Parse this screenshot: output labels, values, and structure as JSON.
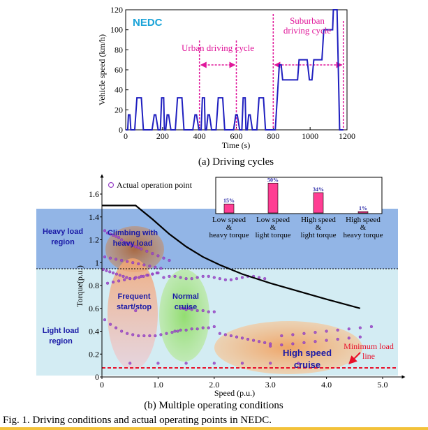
{
  "figure": {
    "caption": "Fig. 1. Driving conditions and actual operating points in NEDC.",
    "subcaption_a": "(a) Driving cycles",
    "subcaption_b": "(b) Multiple operating conditions"
  },
  "chart_data": [
    {
      "type": "line",
      "title": "NEDC",
      "xlabel": "Time (s)",
      "ylabel": "Vehicle speed (km/h)",
      "xlim": [
        0,
        1200
      ],
      "ylim": [
        0,
        120
      ],
      "x_ticks": [
        0,
        200,
        400,
        600,
        800,
        1000,
        1200
      ],
      "y_ticks": [
        0,
        20,
        40,
        60,
        80,
        100,
        120
      ],
      "x_tick_labels": [
        "0",
        "200",
        "400",
        "600",
        "800",
        "1000",
        "1200"
      ],
      "y_tick_labels": [
        "0",
        "20",
        "40",
        "60",
        "80",
        "100",
        "120"
      ],
      "series": [
        {
          "color": "#1f1fbf",
          "x": [
            0,
            11,
            15,
            23,
            28,
            49,
            61,
            85,
            96,
            117,
            122,
            143,
            155,
            163,
            176,
            188,
            195,
            206,
            210,
            217,
            225,
            233,
            245,
            269,
            281,
            305,
            316,
            338,
            343,
            364,
            376,
            384,
            397,
            409,
            416,
            427,
            431,
            438,
            446,
            454,
            466,
            490,
            502,
            526,
            537,
            559,
            564,
            585,
            597,
            605,
            618,
            630,
            637,
            648,
            652,
            659,
            667,
            675,
            687,
            711,
            723,
            747,
            758,
            780,
            800,
            811,
            833,
            843,
            851,
            870,
            920,
            932,
            940,
            984,
            996,
            1010,
            1020,
            1040,
            1064,
            1074,
            1110,
            1122,
            1126,
            1146,
            1160,
            1180
          ],
          "y": [
            0,
            0,
            15,
            15,
            0,
            0,
            32,
            32,
            0,
            0,
            0,
            0,
            15,
            15,
            0,
            0,
            32,
            32,
            0,
            0,
            15,
            15,
            0,
            0,
            32,
            32,
            0,
            0,
            0,
            0,
            15,
            15,
            0,
            0,
            32,
            32,
            0,
            0,
            15,
            15,
            0,
            0,
            32,
            32,
            0,
            0,
            0,
            0,
            15,
            15,
            0,
            0,
            32,
            32,
            0,
            0,
            15,
            15,
            0,
            0,
            32,
            32,
            0,
            0,
            0,
            0,
            65,
            65,
            50,
            50,
            50,
            50,
            70,
            70,
            50,
            50,
            70,
            70,
            70,
            100,
            100,
            100,
            120,
            120,
            0,
            0
          ]
        }
      ],
      "annotations": {
        "urban": "Urban driving cycle",
        "suburban_line1": "Suburban",
        "suburban_line2": "driving cycle"
      }
    },
    {
      "type": "scatter",
      "xlabel": "Speed (p.u.)",
      "ylabel": "Torque(p.u.)",
      "xlim": [
        0,
        5.0
      ],
      "ylim": [
        0,
        1.6
      ],
      "x_ticks": [
        0,
        1.0,
        2.0,
        3.0,
        4.0,
        5.0
      ],
      "x_tick_labels": [
        "0",
        "1.0",
        "2.0",
        "3.0",
        "4.0",
        "5.0"
      ],
      "y_ticks": [
        0,
        0.2,
        0.4,
        0.6,
        0.8,
        1.0,
        1.2,
        1.4,
        1.6
      ],
      "y_tick_labels": [
        "0",
        "0.2",
        "0.4",
        "0.6",
        "0.8",
        "1",
        "1.2",
        "1.4",
        "1.6"
      ],
      "legend": "Actual operation point",
      "legend_position": "top-left",
      "torque_limit_curve": {
        "x": [
          0,
          0.6,
          0.9,
          1.2,
          1.5,
          1.8,
          2.1,
          2.5,
          3.0,
          3.5,
          4.0,
          4.6
        ],
        "y": [
          1.5,
          1.5,
          1.38,
          1.25,
          1.14,
          1.05,
          0.98,
          0.9,
          0.82,
          0.75,
          0.68,
          0.6
        ]
      },
      "region_boundary": 1.0,
      "minimum_load_line": 0.1,
      "regions": {
        "heavy": [
          "Heavy load",
          "region"
        ],
        "light": [
          "Light load",
          "region"
        ]
      },
      "conditions": {
        "climbing": [
          "Climbing with",
          "heavy load"
        ],
        "frequent": [
          "Frequent",
          "start/stop"
        ],
        "normal": [
          "Normal",
          "cruise"
        ],
        "high_speed": [
          "High speed",
          "cruise"
        ],
        "minimum_load": [
          "Minimum load",
          "line"
        ]
      },
      "points": {
        "x": [
          0.05,
          0.1,
          0.15,
          0.2,
          0.25,
          0.3,
          0.35,
          0.4,
          0.45,
          0.5,
          0.55,
          0.6,
          0.65,
          0.7,
          0.8,
          0.9,
          1.0,
          1.1,
          1.2,
          0.05,
          0.15,
          0.25,
          0.35,
          0.45,
          0.55,
          0.65,
          0.75,
          0.85,
          0.95,
          1.05,
          0.02,
          0.08,
          0.14,
          0.2,
          0.26,
          0.32,
          0.38,
          0.44,
          0.5,
          0.58,
          0.66,
          0.74,
          0.82,
          0.9,
          0.98,
          0.1,
          0.2,
          0.3,
          0.4,
          0.5,
          0.6,
          0.7,
          0.8,
          0.9,
          1.0,
          0.05,
          0.15,
          0.25,
          0.35,
          0.45,
          0.55,
          0.65,
          0.75,
          0.85,
          0.95,
          1.05,
          1.15,
          1.25,
          1.35,
          1.1,
          1.2,
          1.3,
          1.4,
          1.5,
          1.6,
          1.7,
          1.8,
          1.9,
          2.0,
          2.1,
          2.2,
          2.3,
          2.4,
          2.5,
          2.6,
          2.7,
          2.8,
          2.9,
          1.3,
          1.4,
          1.5,
          1.6,
          1.7,
          1.8,
          1.9,
          2.0,
          1.4,
          1.5,
          1.6,
          1.7,
          1.8,
          1.9,
          2.0,
          2.1,
          2.2,
          2.3,
          2.4,
          2.5,
          2.6,
          2.7,
          2.8,
          2.9,
          3.0,
          3.2,
          3.4,
          3.6,
          3.8,
          4.0,
          4.2,
          4.4,
          4.6,
          4.8,
          3.0,
          3.2,
          3.4,
          3.6,
          3.8,
          4.0,
          4.2,
          4.4,
          4.6,
          0.5,
          1.0,
          1.5,
          2.0,
          2.5,
          3.0,
          3.5,
          0.6,
          1.45,
          1.55
        ],
        "y": [
          1.28,
          1.26,
          1.25,
          1.24,
          1.23,
          1.22,
          1.2,
          1.18,
          1.17,
          1.16,
          1.15,
          1.14,
          1.13,
          1.12,
          1.1,
          1.08,
          1.06,
          1.04,
          1.02,
          1.05,
          1.04,
          1.03,
          1.02,
          1.01,
          1.0,
          0.99,
          0.98,
          0.97,
          0.96,
          0.95,
          0.94,
          0.93,
          0.92,
          0.91,
          0.9,
          0.89,
          0.88,
          0.87,
          0.86,
          0.86,
          0.87,
          0.88,
          0.89,
          0.9,
          0.91,
          0.82,
          0.83,
          0.84,
          0.85,
          0.86,
          0.87,
          0.88,
          0.89,
          0.9,
          0.91,
          0.5,
          0.46,
          0.43,
          0.4,
          0.38,
          0.37,
          0.36,
          0.36,
          0.36,
          0.36,
          0.37,
          0.38,
          0.39,
          0.4,
          0.87,
          0.88,
          0.88,
          0.87,
          0.86,
          0.86,
          0.87,
          0.88,
          0.88,
          0.87,
          0.86,
          0.85,
          0.85,
          0.86,
          0.87,
          0.88,
          0.88,
          0.87,
          0.86,
          0.4,
          0.41,
          0.41,
          0.42,
          0.42,
          0.43,
          0.43,
          0.44,
          0.6,
          0.59,
          0.59,
          0.58,
          0.58,
          0.57,
          0.57,
          0.38,
          0.37,
          0.36,
          0.35,
          0.34,
          0.33,
          0.32,
          0.31,
          0.3,
          0.29,
          0.36,
          0.37,
          0.38,
          0.39,
          0.4,
          0.41,
          0.42,
          0.43,
          0.44,
          0.27,
          0.28,
          0.29,
          0.3,
          0.31,
          0.32,
          0.33,
          0.34,
          0.35,
          0.12,
          0.12,
          0.12,
          0.12,
          0.12,
          0.12,
          0.12,
          0.58,
          0.6,
          0.6
        ]
      }
    },
    {
      "type": "bar",
      "categories": [
        [
          "Low speed",
          "&",
          "heavy torque"
        ],
        [
          "Low speed",
          "&",
          "light torque"
        ],
        [
          "High speed",
          "&",
          "light torque"
        ],
        [
          "High speed",
          "&",
          "heavy torque"
        ]
      ],
      "values": [
        15,
        50,
        34,
        1
      ],
      "value_labels": [
        "15%",
        "50%",
        "34%",
        "1%"
      ],
      "ylim": [
        0,
        55
      ]
    }
  ],
  "colors": {
    "cycle_line": "#1f1fbf",
    "annotation": "#e0169a",
    "heavy_region": "#92b5e6",
    "light_region": "#d3ecf3",
    "limit_curve": "#000000",
    "points": "#9b46c8",
    "region_text": "#1a1aa6",
    "minimum_line": "#e8102a",
    "bar_fill": "#ff3d93",
    "bar_label": "#2a2aa8"
  }
}
